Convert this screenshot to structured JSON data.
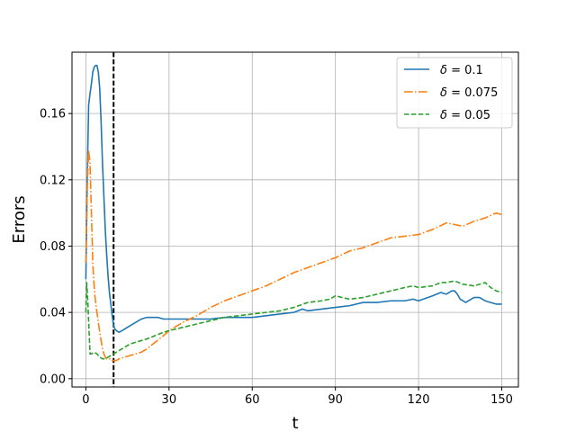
{
  "chart_data": {
    "type": "line",
    "title": "",
    "xlabel": "t",
    "ylabel": "Errors",
    "xlim": [
      -5,
      156
    ],
    "ylim": [
      -0.005,
      0.197
    ],
    "xticks": [
      0,
      30,
      60,
      90,
      120,
      150
    ],
    "yticks": [
      0.0,
      0.04,
      0.08,
      0.12,
      0.16
    ],
    "xtick_labels": [
      "0",
      "30",
      "60",
      "90",
      "120",
      "150"
    ],
    "ytick_labels": [
      "0.00",
      "0.04",
      "0.08",
      "0.12",
      "0.16"
    ],
    "grid": true,
    "legend_position": "top-right",
    "vline": {
      "x": 10,
      "color": "#000000",
      "style": "dashed"
    },
    "series": [
      {
        "name": "δ = 0.1",
        "name_symbol": "δ",
        "name_value": " = 0.1",
        "color": "#1f77b4",
        "style": "solid",
        "x": [
          0,
          0.5,
          1,
          1.5,
          2,
          2.5,
          3,
          3.5,
          4,
          4.5,
          5,
          5.5,
          6,
          6.5,
          7,
          7.5,
          8,
          8.5,
          9,
          9.5,
          10,
          10.5,
          11,
          12,
          13,
          14,
          15,
          16,
          18,
          20,
          22,
          24,
          26,
          28,
          30,
          32,
          35,
          40,
          45,
          50,
          55,
          60,
          65,
          70,
          75,
          78,
          80,
          85,
          90,
          95,
          100,
          105,
          110,
          115,
          118,
          120,
          125,
          128,
          130,
          132,
          133,
          134,
          135,
          136,
          137,
          138,
          140,
          142,
          144,
          146,
          148,
          150
        ],
        "y": [
          0.06,
          0.12,
          0.165,
          0.172,
          0.178,
          0.185,
          0.188,
          0.189,
          0.189,
          0.185,
          0.175,
          0.155,
          0.13,
          0.11,
          0.09,
          0.075,
          0.062,
          0.052,
          0.045,
          0.038,
          0.032,
          0.03,
          0.029,
          0.028,
          0.029,
          0.03,
          0.031,
          0.032,
          0.034,
          0.036,
          0.037,
          0.037,
          0.037,
          0.036,
          0.036,
          0.036,
          0.036,
          0.036,
          0.036,
          0.037,
          0.037,
          0.037,
          0.038,
          0.039,
          0.04,
          0.042,
          0.041,
          0.042,
          0.043,
          0.044,
          0.046,
          0.046,
          0.047,
          0.047,
          0.048,
          0.047,
          0.05,
          0.052,
          0.051,
          0.053,
          0.053,
          0.051,
          0.048,
          0.047,
          0.046,
          0.047,
          0.049,
          0.049,
          0.047,
          0.046,
          0.045,
          0.045
        ]
      },
      {
        "name": "δ = 0.075",
        "name_symbol": "δ",
        "name_value": " = 0.075",
        "color": "#ff7f0e",
        "style": "dashdot",
        "x": [
          0,
          0.5,
          1,
          1.5,
          2,
          2.5,
          3,
          3.5,
          4,
          4.5,
          5,
          5.5,
          6,
          6.5,
          7,
          7.5,
          8,
          8.5,
          9,
          9.5,
          10,
          10.5,
          11,
          12,
          14,
          16,
          18,
          20,
          22,
          25,
          28,
          30,
          35,
          40,
          45,
          50,
          55,
          60,
          65,
          70,
          75,
          80,
          85,
          90,
          95,
          100,
          105,
          110,
          115,
          120,
          125,
          130,
          133,
          136,
          140,
          144,
          148,
          150
        ],
        "y": [
          0.07,
          0.115,
          0.138,
          0.13,
          0.1,
          0.07,
          0.055,
          0.046,
          0.04,
          0.034,
          0.028,
          0.023,
          0.018,
          0.015,
          0.013,
          0.012,
          0.012,
          0.012,
          0.012,
          0.011,
          0.011,
          0.011,
          0.011,
          0.012,
          0.013,
          0.014,
          0.015,
          0.016,
          0.018,
          0.022,
          0.026,
          0.029,
          0.034,
          0.038,
          0.043,
          0.047,
          0.05,
          0.053,
          0.056,
          0.06,
          0.064,
          0.067,
          0.07,
          0.073,
          0.077,
          0.079,
          0.082,
          0.085,
          0.086,
          0.087,
          0.09,
          0.094,
          0.093,
          0.092,
          0.095,
          0.097,
          0.1,
          0.099
        ]
      },
      {
        "name": "δ = 0.05",
        "name_symbol": "δ",
        "name_value": " = 0.05",
        "color": "#2ca02c",
        "style": "dashed",
        "x": [
          0,
          0.3,
          0.6,
          1,
          1.5,
          2,
          3,
          4,
          5,
          6,
          7,
          8,
          9,
          10,
          11,
          12,
          14,
          16,
          18,
          20,
          22,
          25,
          28,
          30,
          35,
          40,
          45,
          50,
          55,
          60,
          65,
          70,
          75,
          80,
          85,
          88,
          90,
          95,
          100,
          105,
          110,
          115,
          118,
          120,
          125,
          128,
          130,
          133,
          136,
          140,
          144,
          146,
          148,
          150
        ],
        "y": [
          0.04,
          0.058,
          0.05,
          0.035,
          0.015,
          0.015,
          0.016,
          0.015,
          0.013,
          0.012,
          0.012,
          0.013,
          0.014,
          0.015,
          0.016,
          0.017,
          0.019,
          0.021,
          0.022,
          0.023,
          0.024,
          0.026,
          0.028,
          0.029,
          0.031,
          0.033,
          0.035,
          0.037,
          0.038,
          0.039,
          0.04,
          0.041,
          0.043,
          0.046,
          0.047,
          0.048,
          0.05,
          0.048,
          0.049,
          0.051,
          0.053,
          0.055,
          0.056,
          0.055,
          0.056,
          0.058,
          0.058,
          0.059,
          0.057,
          0.056,
          0.058,
          0.055,
          0.053,
          0.052
        ]
      }
    ]
  }
}
